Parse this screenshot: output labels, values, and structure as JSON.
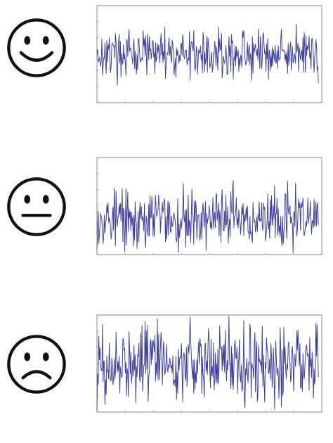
{
  "colors": {
    "signal": "#3c3c9e",
    "signal_light": "#a9a9d6",
    "frame": "#6a6a6a",
    "face": "#111111"
  },
  "rows": [
    {
      "icon": "happy-face-icon"
    },
    {
      "icon": "neutral-face-icon"
    },
    {
      "icon": "sad-face-icon"
    }
  ],
  "chart_data": [
    {
      "type": "line",
      "xlim": [
        0,
        2000
      ],
      "ylim": [
        -1.5,
        1.5
      ],
      "x_ticks": [
        0,
        250,
        500,
        750,
        1000,
        1250,
        1500,
        1750,
        2000
      ],
      "y_ticks": [
        -1.5,
        -1,
        -0.5,
        0,
        0.5,
        1,
        1.5
      ],
      "center": 0.0,
      "amplitude": 0.35,
      "seed": 17,
      "grid": false
    },
    {
      "type": "line",
      "xlim": [
        0,
        2000
      ],
      "ylim": [
        -1.5,
        1.5
      ],
      "x_ticks": [
        0,
        250,
        500,
        750,
        1000,
        1250,
        1500,
        1750,
        2000
      ],
      "y_ticks": [
        -1.5,
        -1,
        -0.5,
        0,
        0.5,
        1,
        1.5
      ],
      "center": -0.4,
      "amplitude": 0.45,
      "seed": 53,
      "grid": false
    },
    {
      "type": "line",
      "xlim": [
        0,
        2000
      ],
      "ylim": [
        -1.5,
        1.5
      ],
      "x_ticks": [
        0,
        250,
        500,
        750,
        1000,
        1250,
        1500,
        1750,
        2000
      ],
      "y_ticks": [
        -1.5,
        -1,
        -0.5,
        0,
        0.5,
        1,
        1.5
      ],
      "center": 0.0,
      "amplitude": 0.6,
      "seed": 91,
      "grid": false
    }
  ]
}
